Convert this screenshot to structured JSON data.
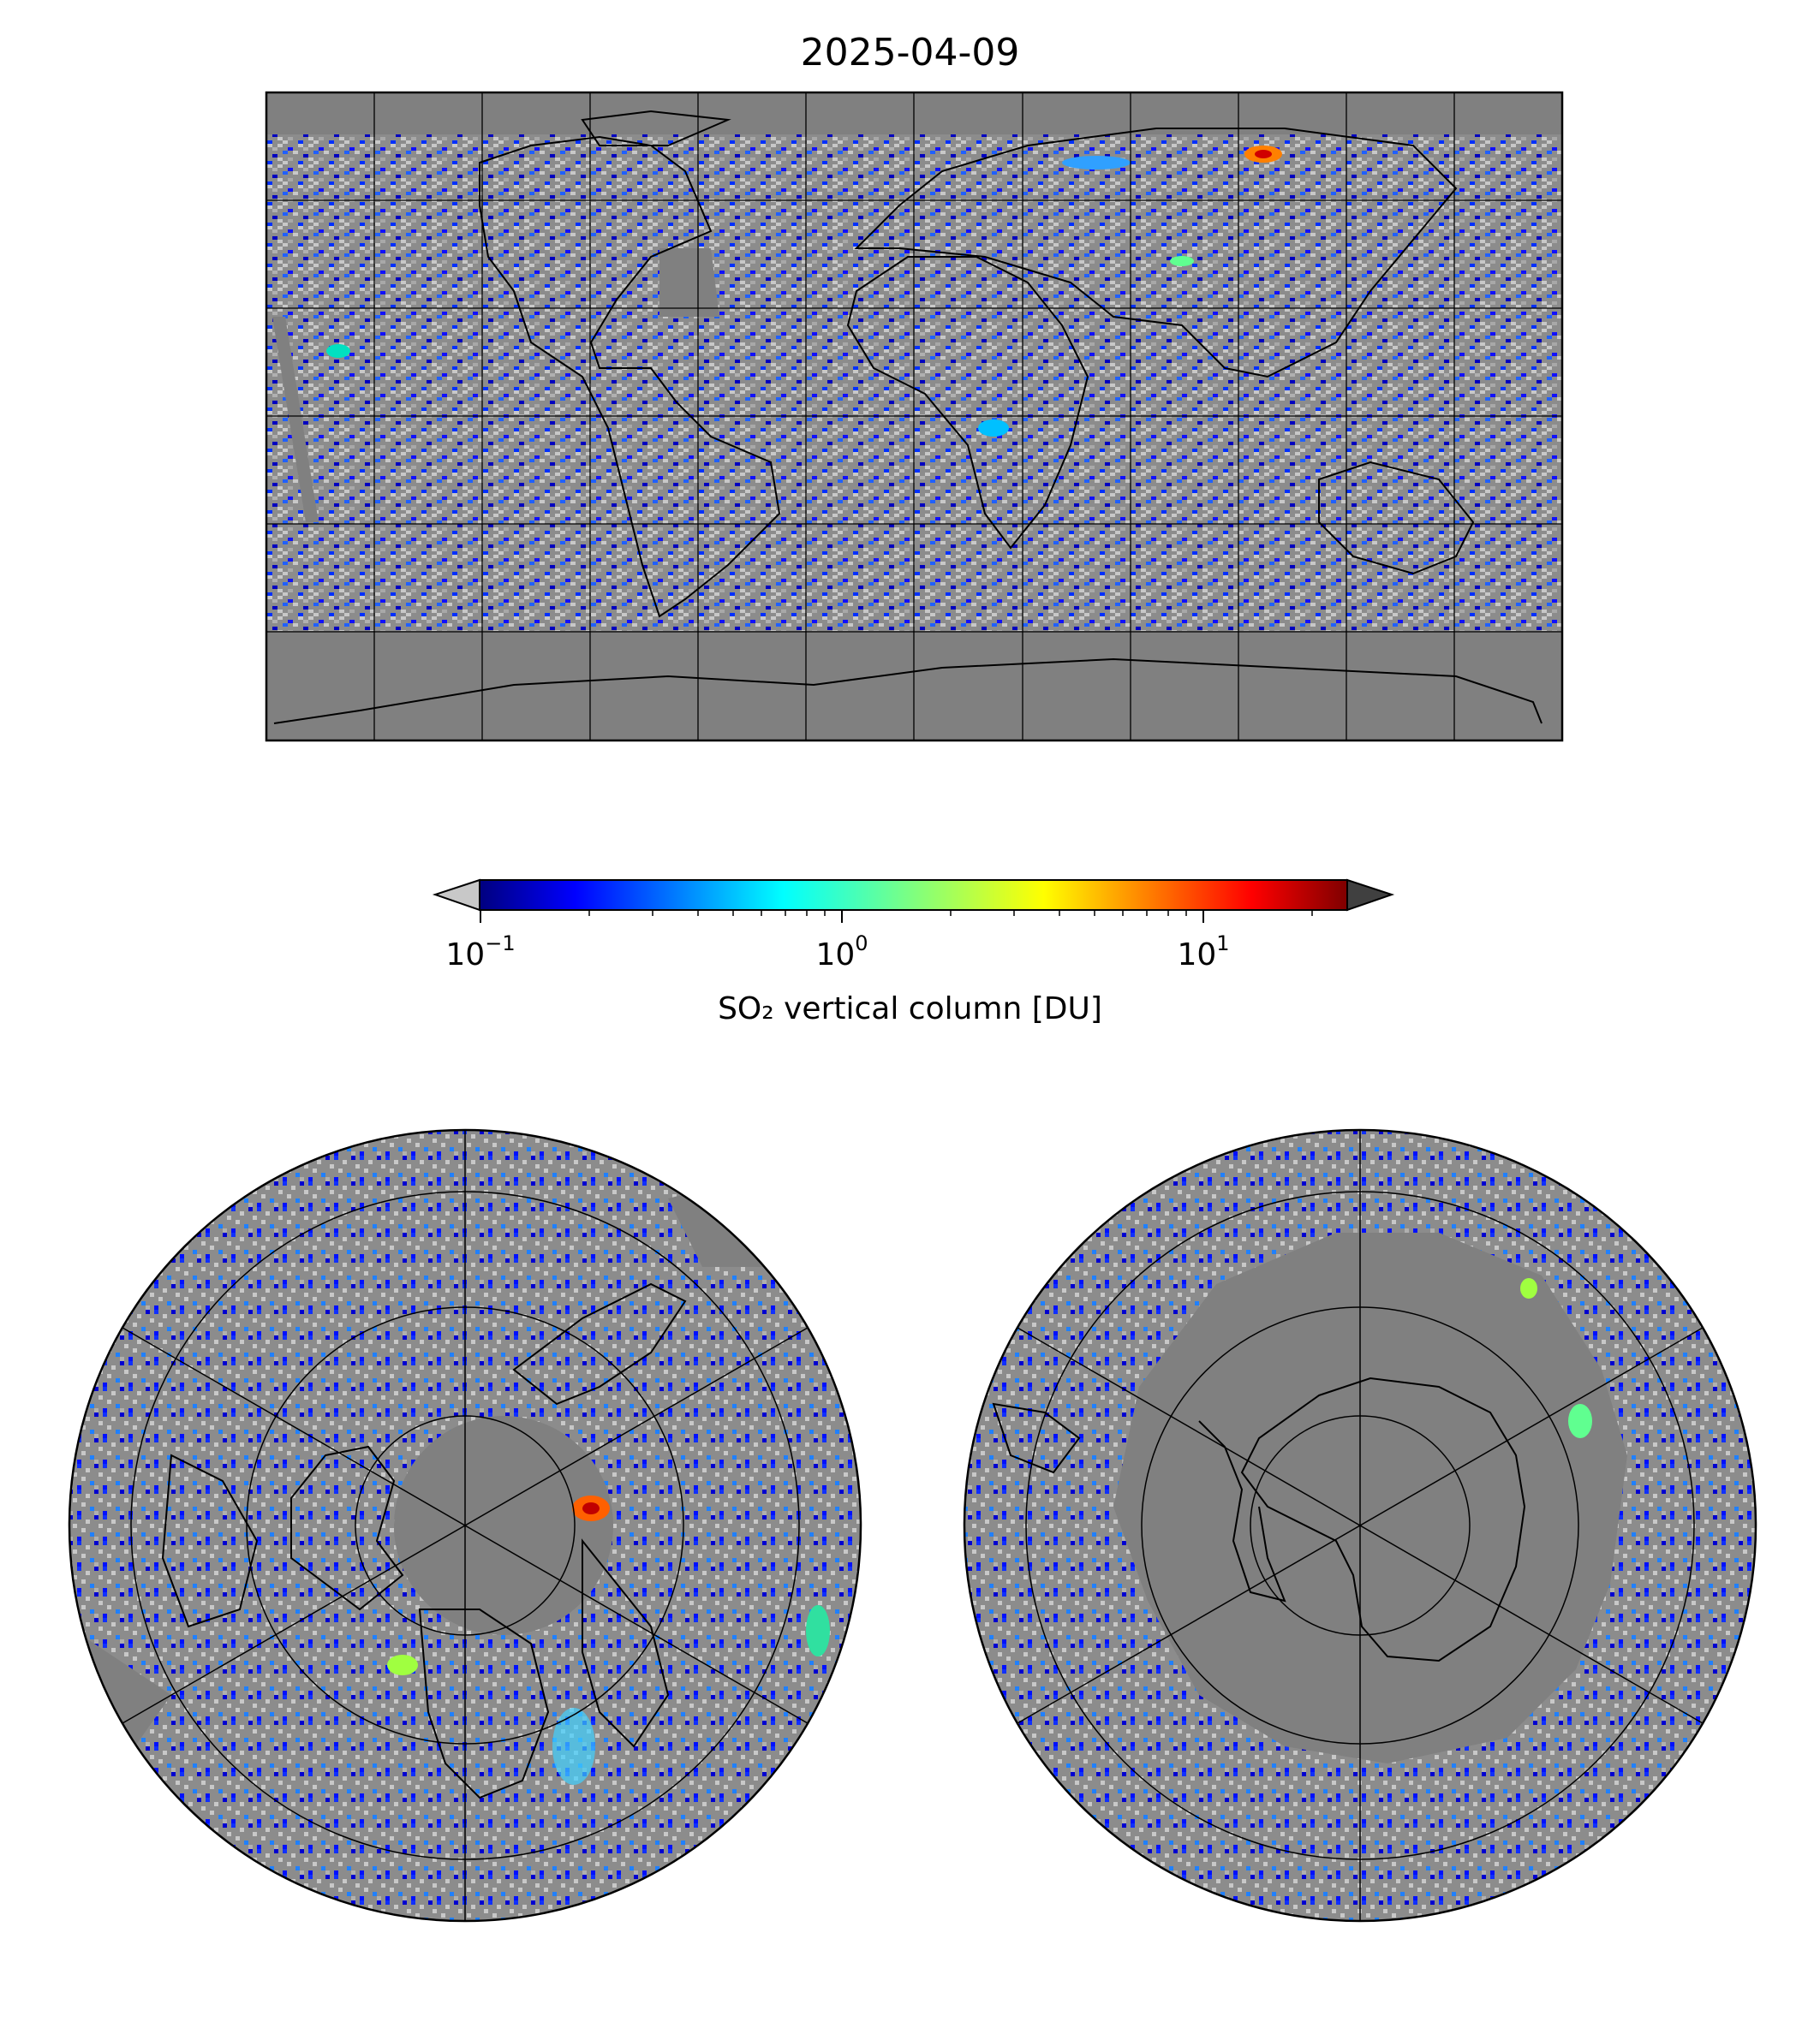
{
  "title": "2025-04-09",
  "colorbar": {
    "label": "SO₂ vertical column [DU]",
    "scale": "log",
    "range": [
      0.1,
      25
    ],
    "colormap": "jet",
    "under_color": "#c8c8c8",
    "over_color": "#404040",
    "extend": "both",
    "ticks": [
      {
        "base": "10",
        "exp": "−1",
        "value": 0.1
      },
      {
        "base": "10",
        "exp": "0",
        "value": 1
      },
      {
        "base": "10",
        "exp": "1",
        "value": 10
      }
    ]
  },
  "maps": [
    {
      "projection": "PlateCarree",
      "extent": "global"
    },
    {
      "projection": "NorthPolarStereo"
    },
    {
      "projection": "SouthPolarStereo"
    }
  ],
  "colors": {
    "no_data": "#808080",
    "below_range": "#c8c8c8",
    "coast": "#000000",
    "grid": "#000000"
  }
}
